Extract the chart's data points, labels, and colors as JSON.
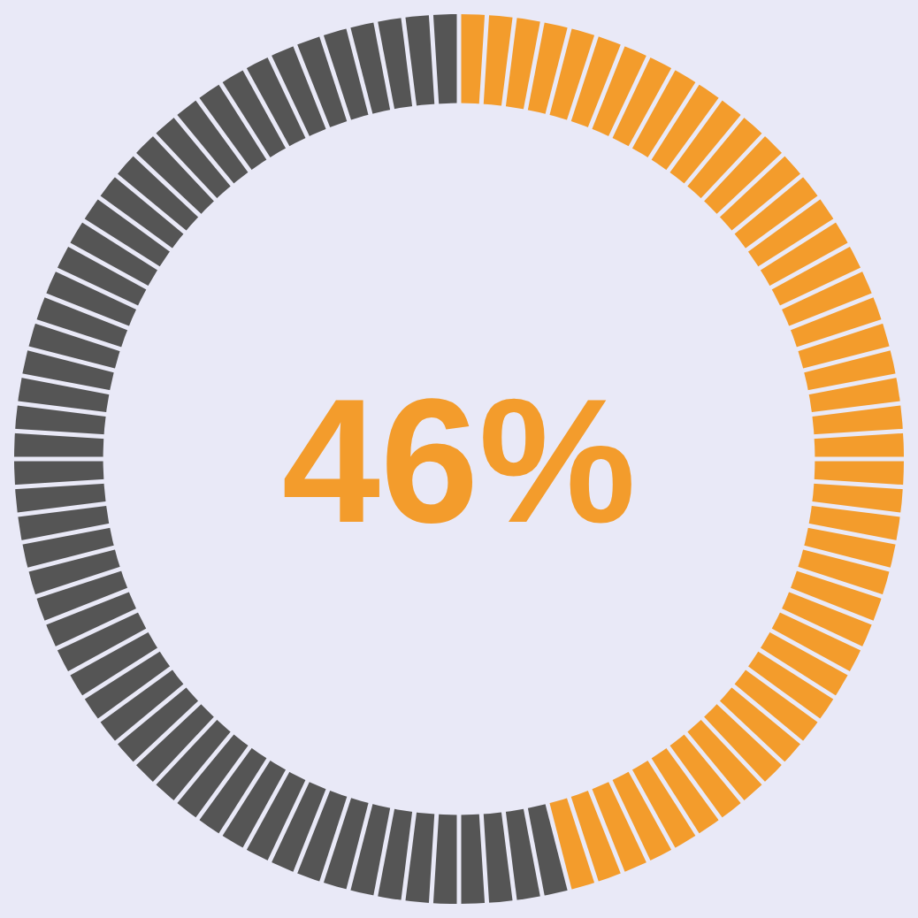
{
  "chart_data": {
    "type": "donut",
    "categories": [
      null,
      null
    ],
    "values": [
      46,
      54
    ],
    "colors": [
      "#f39c2c",
      "#555555"
    ],
    "annotations": [
      "46%"
    ]
  }
}
